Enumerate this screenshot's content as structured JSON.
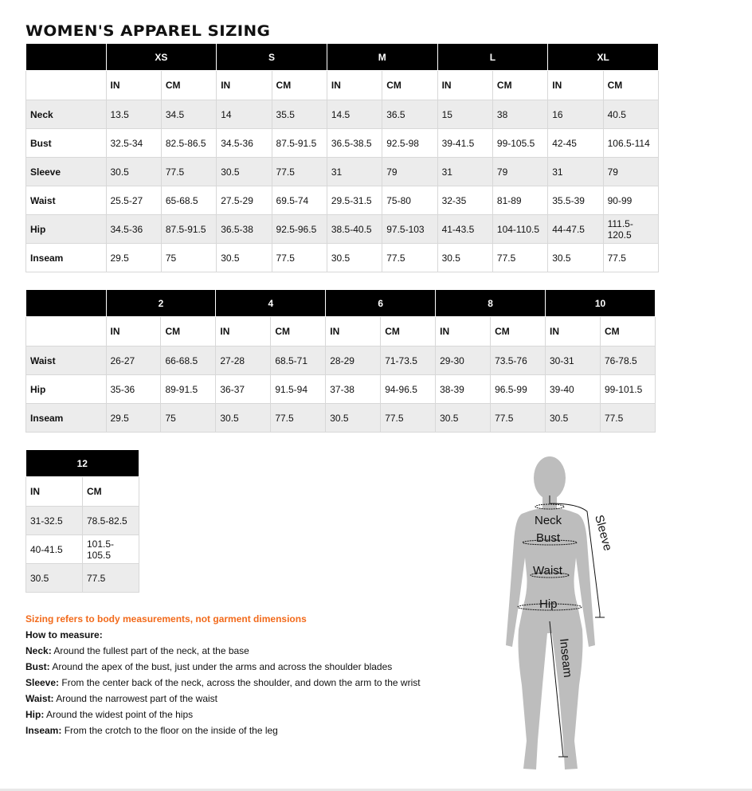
{
  "title": "WOMEN'S APPAREL SIZING",
  "tables": [
    {
      "sizes": [
        "XS",
        "S",
        "M",
        "L",
        "XL"
      ],
      "units": [
        "IN",
        "CM"
      ],
      "rows": [
        {
          "label": "Neck",
          "values": [
            "13.5",
            "34.5",
            "14",
            "35.5",
            "14.5",
            "36.5",
            "15",
            "38",
            "16",
            "40.5"
          ]
        },
        {
          "label": "Bust",
          "values": [
            "32.5-34",
            "82.5-86.5",
            "34.5-36",
            "87.5-91.5",
            "36.5-38.5",
            "92.5-98",
            "39-41.5",
            "99-105.5",
            "42-45",
            "106.5-114"
          ]
        },
        {
          "label": "Sleeve",
          "values": [
            "30.5",
            "77.5",
            "30.5",
            "77.5",
            "31",
            "79",
            "31",
            "79",
            "31",
            "79"
          ]
        },
        {
          "label": "Waist",
          "values": [
            "25.5-27",
            "65-68.5",
            "27.5-29",
            "69.5-74",
            "29.5-31.5",
            "75-80",
            "32-35",
            "81-89",
            "35.5-39",
            "90-99"
          ]
        },
        {
          "label": "Hip",
          "values": [
            "34.5-36",
            "87.5-91.5",
            "36.5-38",
            "92.5-96.5",
            "38.5-40.5",
            "97.5-103",
            "41-43.5",
            "104-110.5",
            "44-47.5",
            "111.5-120.5"
          ]
        },
        {
          "label": "Inseam",
          "values": [
            "29.5",
            "75",
            "30.5",
            "77.5",
            "30.5",
            "77.5",
            "30.5",
            "77.5",
            "30.5",
            "77.5"
          ]
        }
      ]
    },
    {
      "sizes": [
        "2",
        "4",
        "6",
        "8",
        "10"
      ],
      "units": [
        "IN",
        "CM"
      ],
      "rows": [
        {
          "label": "Waist",
          "values": [
            "26-27",
            "66-68.5",
            "27-28",
            "68.5-71",
            "28-29",
            "71-73.5",
            "29-30",
            "73.5-76",
            "30-31",
            "76-78.5"
          ]
        },
        {
          "label": "Hip",
          "values": [
            "35-36",
            "89-91.5",
            "36-37",
            "91.5-94",
            "37-38",
            "94-96.5",
            "38-39",
            "96.5-99",
            "39-40",
            "99-101.5"
          ]
        },
        {
          "label": "Inseam",
          "values": [
            "29.5",
            "75",
            "30.5",
            "77.5",
            "30.5",
            "77.5",
            "30.5",
            "77.5",
            "30.5",
            "77.5"
          ]
        }
      ]
    },
    {
      "sizes": [
        "12"
      ],
      "units": [
        "IN",
        "CM"
      ],
      "rows": [
        {
          "values": [
            "31-32.5",
            "78.5-82.5"
          ]
        },
        {
          "values": [
            "40-41.5",
            "101.5-105.5"
          ]
        },
        {
          "values": [
            "30.5",
            "77.5"
          ]
        }
      ]
    }
  ],
  "notes": {
    "disclaimer": "Sizing refers to body measurements, not garment dimensions",
    "how_to": "How to measure:",
    "items": [
      {
        "term": "Neck:",
        "text": " Around the fullest part of the neck, at the base"
      },
      {
        "term": "Bust:",
        "text": " Around the apex of the bust, just under the arms and across the shoulder blades"
      },
      {
        "term": "Sleeve:",
        "text": " From the center back of the neck, across the shoulder, and down the arm to the wrist"
      },
      {
        "term": "Waist:",
        "text": " Around the narrowest part of the waist"
      },
      {
        "term": "Hip:",
        "text": " Around the widest point of the hips"
      },
      {
        "term": "Inseam:",
        "text": " From the crotch to the floor on the inside of the leg"
      }
    ]
  },
  "figure": {
    "labels": {
      "neck": "Neck",
      "bust": "Bust",
      "waist": "Waist",
      "hip": "Hip",
      "sleeve": "Sleeve",
      "inseam": "Inseam"
    }
  },
  "colors": {
    "accent": "#f26a1b",
    "header": "#000000",
    "stripe": "#ececec",
    "silhouette": "#bdbdbd"
  }
}
